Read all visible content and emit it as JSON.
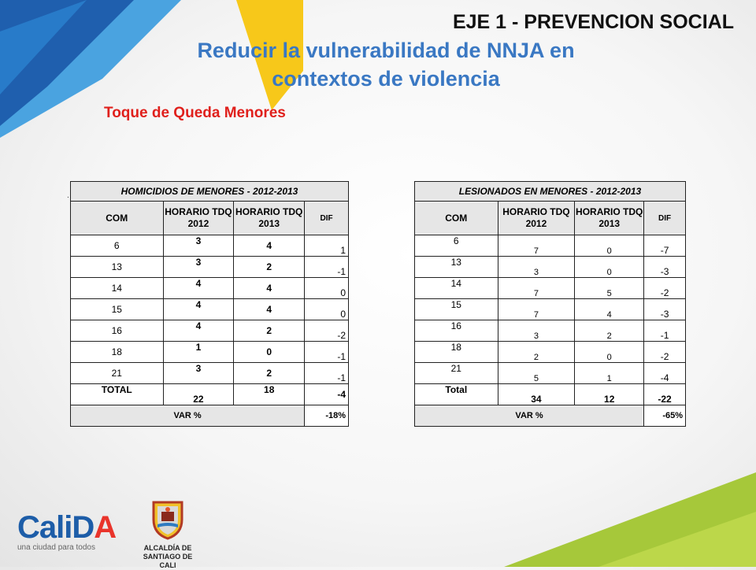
{
  "header": {
    "eje": "EJE 1 - PREVENCION SOCIAL",
    "title_line1": "Reducir la vulnerabilidad de NNJA en",
    "title_line2": "contextos de violencia",
    "subtitle": "Toque de Queda Menores"
  },
  "homicidios": {
    "title": "HOMICIDIOS DE MENORES - 2012-2013",
    "headers": [
      "COM",
      "HORARIO TDQ 2012",
      "HORARIO TDQ 2013",
      "DIF"
    ],
    "rows": [
      {
        "com": "6",
        "v2012": "3",
        "v2013": "4",
        "dif": "1"
      },
      {
        "com": "13",
        "v2012": "3",
        "v2013": "2",
        "dif": "-1"
      },
      {
        "com": "14",
        "v2012": "4",
        "v2013": "4",
        "dif": "0"
      },
      {
        "com": "15",
        "v2012": "4",
        "v2013": "4",
        "dif": "0"
      },
      {
        "com": "16",
        "v2012": "4",
        "v2013": "2",
        "dif": "-2"
      },
      {
        "com": "18",
        "v2012": "1",
        "v2013": "0",
        "dif": "-1"
      },
      {
        "com": "21",
        "v2012": "3",
        "v2013": "2",
        "dif": "-1"
      }
    ],
    "total": {
      "label": "TOTAL",
      "v2012": "22",
      "v2013": "18",
      "dif": "-4"
    },
    "var": {
      "label": "VAR %",
      "value": "-18%"
    }
  },
  "lesionados": {
    "title": "LESIONADOS EN MENORES - 2012-2013",
    "headers": [
      "COM",
      "HORARIO TDQ 2012",
      "HORARIO TDQ 2013",
      "DIF"
    ],
    "rows": [
      {
        "com": "6",
        "v2012": "7",
        "v2013": "0",
        "dif": "-7"
      },
      {
        "com": "13",
        "v2012": "3",
        "v2013": "0",
        "dif": "-3"
      },
      {
        "com": "14",
        "v2012": "7",
        "v2013": "5",
        "dif": "-2"
      },
      {
        "com": "15",
        "v2012": "7",
        "v2013": "4",
        "dif": "-3"
      },
      {
        "com": "16",
        "v2012": "3",
        "v2013": "2",
        "dif": "-1"
      },
      {
        "com": "18",
        "v2012": "2",
        "v2013": "0",
        "dif": "-2"
      },
      {
        "com": "21",
        "v2012": "5",
        "v2013": "1",
        "dif": "-4"
      }
    ],
    "total": {
      "label": "Total",
      "v2012": "34",
      "v2013": "12",
      "dif": "-22"
    },
    "var": {
      "label": "VAR %",
      "value": "-65%"
    }
  },
  "footer": {
    "calida_part1": "Cali",
    "calida_part2": "D",
    "calida_part3": "A",
    "calida_tagline": "una ciudad para todos",
    "alcaldia_line1": "ALCALDÍA DE",
    "alcaldia_line2": "SANTIAGO DE CALI"
  },
  "colors": {
    "title_blue": "#3a78c3",
    "subtitle_red": "#e0201c",
    "deco_blue": "#1f6fbd",
    "deco_yellow": "#f7c81a",
    "deco_green": "#a6c83a"
  }
}
